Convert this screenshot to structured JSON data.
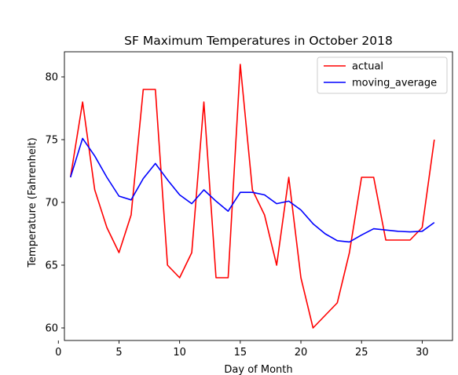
{
  "chart_data": {
    "type": "line",
    "title": "SF Maximum Temperatures in October 2018",
    "xlabel": "Day of Month",
    "ylabel": "Temperature (Fahrenheit)",
    "xlim": [
      0.5,
      32.5
    ],
    "ylim": [
      59,
      82
    ],
    "xticks": [
      0,
      5,
      10,
      15,
      20,
      25,
      30
    ],
    "yticks": [
      60,
      65,
      70,
      75,
      80
    ],
    "grid": false,
    "legend": "top-right",
    "series": [
      {
        "name": "actual",
        "color": "#ff0000",
        "x": [
          1,
          2,
          3,
          4,
          5,
          6,
          7,
          8,
          9,
          10,
          11,
          12,
          13,
          14,
          15,
          16,
          17,
          18,
          19,
          20,
          21,
          22,
          23,
          24,
          25,
          26,
          27,
          28,
          29,
          30,
          31
        ],
        "y": [
          72,
          78,
          71,
          68,
          66,
          69,
          79,
          79,
          65,
          64,
          66,
          78,
          64,
          64,
          81,
          71,
          69,
          65,
          72,
          64,
          60,
          61,
          62,
          66,
          72,
          72,
          67,
          67,
          67,
          68,
          75
        ]
      },
      {
        "name": "moving_average",
        "color": "#0000ff",
        "x": [
          1,
          2,
          3,
          4,
          5,
          6,
          7,
          8,
          9,
          10,
          11,
          12,
          13,
          14,
          15,
          16,
          17,
          18,
          19,
          20,
          21,
          22,
          23,
          24,
          25,
          26,
          27,
          28,
          29,
          30,
          31
        ],
        "y": [
          72,
          75.1,
          73.7,
          72,
          70.5,
          70.2,
          71.9,
          73.1,
          71.8,
          70.6,
          69.9,
          71,
          70.1,
          69.3,
          70.8,
          70.8,
          70.6,
          69.9,
          70.1,
          69.4,
          68.3,
          67.5,
          66.95,
          66.85,
          67.4,
          67.9,
          67.8,
          67.7,
          67.65,
          67.7,
          68.4
        ]
      }
    ]
  }
}
